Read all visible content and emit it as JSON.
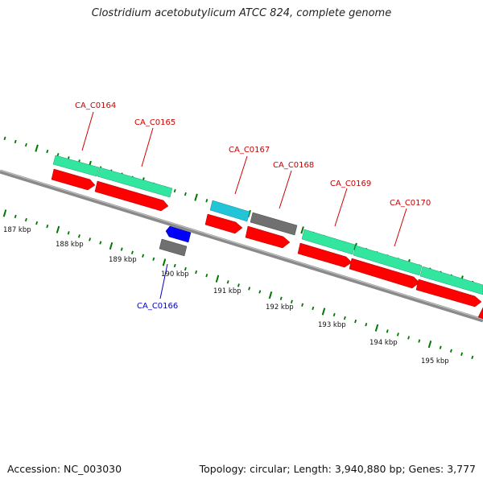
{
  "title": "Clostridium acetobutylicum ATCC 824, complete genome",
  "accession": "Accession: NC_003030",
  "topology": "Topology: circular; Length: 3,940,880 bp; Genes: 3,777",
  "colors": {
    "forward_cds": "#ff0000",
    "reverse_cds": "#0000ff",
    "gene_track": "#33e6a0",
    "gene_track_alt": "#22c4d8",
    "pseudo": "#707070",
    "ticks": "#007700",
    "backbone": "#8a8a8a",
    "label_forward": "#cc0000",
    "label_reverse": "#0000cc"
  },
  "kbp_labels": [
    "187 kbp",
    "188 kbp",
    "189 kbp",
    "190 kbp",
    "191 kbp",
    "192 kbp",
    "193 kbp",
    "194 kbp",
    "195 kbp"
  ],
  "genes": [
    {
      "name": "CA_C0164",
      "strand": "forward"
    },
    {
      "name": "CA_C0165",
      "strand": "forward"
    },
    {
      "name": "CA_C0166",
      "strand": "reverse"
    },
    {
      "name": "CA_C0167",
      "strand": "forward"
    },
    {
      "name": "CA_C0168",
      "strand": "forward"
    },
    {
      "name": "CA_C0169",
      "strand": "forward"
    },
    {
      "name": "CA_C0170",
      "strand": "forward"
    }
  ]
}
